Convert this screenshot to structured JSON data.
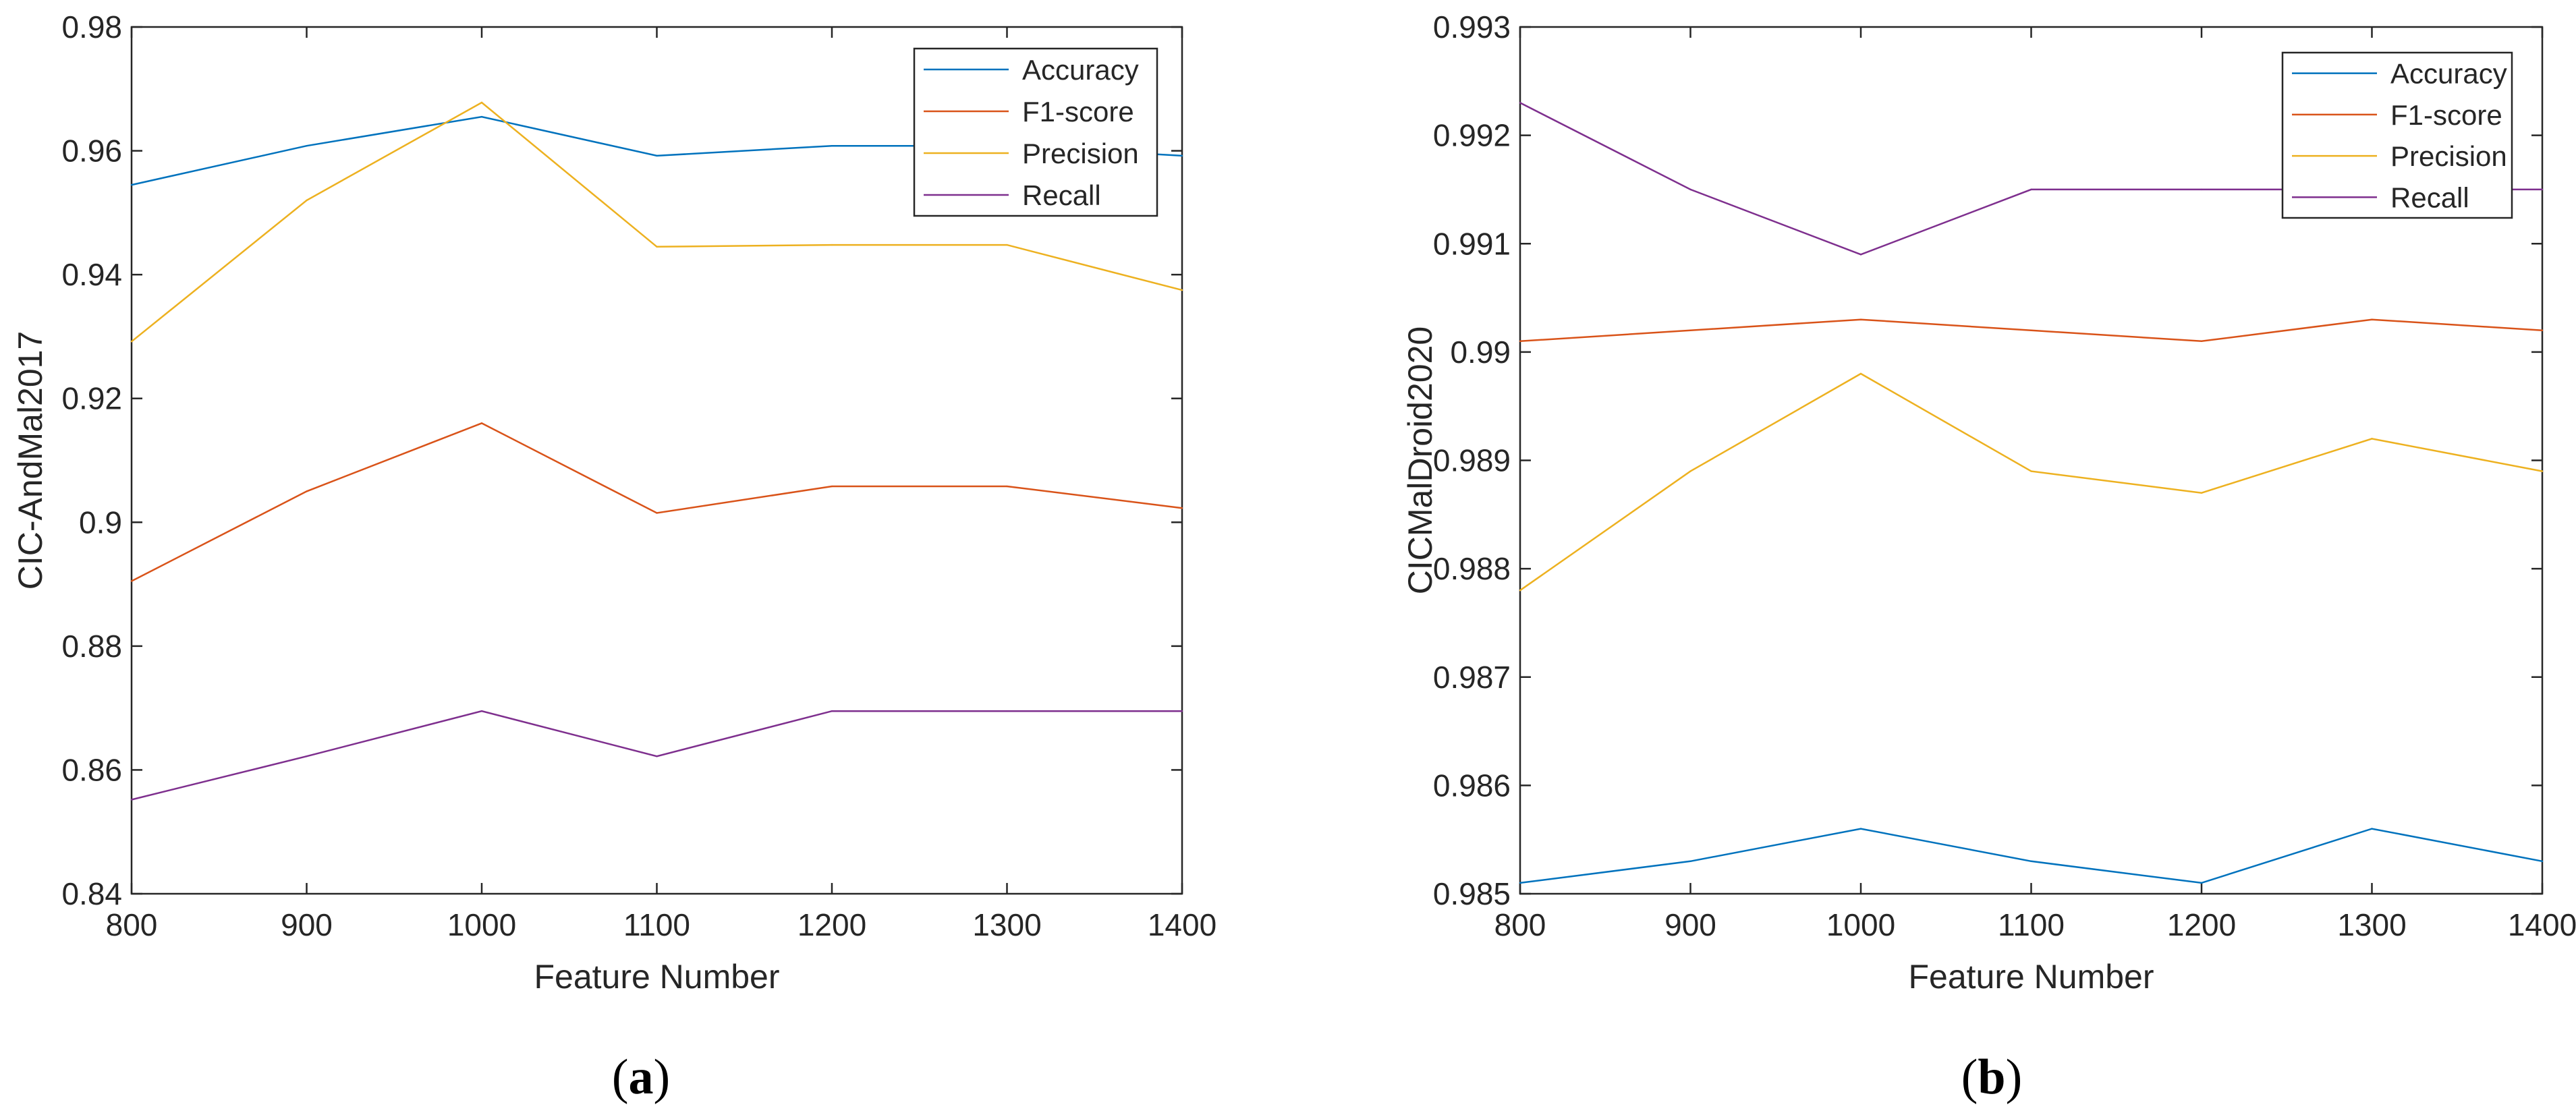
{
  "chart_data": [
    {
      "type": "line",
      "panel": "(a)",
      "xlabel": "Feature Number",
      "ylabel": "CIC-AndMal2017",
      "x": [
        800,
        900,
        1000,
        1100,
        1200,
        1300,
        1400
      ],
      "xlim": [
        800,
        1400
      ],
      "ylim": [
        0.84,
        0.98
      ],
      "xticks": [
        "800",
        "900",
        "1000",
        "1100",
        "1200",
        "1300",
        "1400"
      ],
      "yticks": [
        "0.84",
        "0.86",
        "0.88",
        "0.9",
        "0.92",
        "0.94",
        "0.96",
        "0.98"
      ],
      "legend_position": "top-right",
      "series": [
        {
          "name": "Accuracy",
          "color": "#0072BD",
          "values": [
            0.9545,
            0.9608,
            0.9655,
            0.9592,
            0.9608,
            0.9608,
            0.9592
          ]
        },
        {
          "name": "F1-score",
          "color": "#D95319",
          "values": [
            0.8905,
            0.905,
            0.916,
            0.9015,
            0.9058,
            0.9058,
            0.9023
          ]
        },
        {
          "name": "Precision",
          "color": "#EDB120",
          "values": [
            0.9292,
            0.952,
            0.9678,
            0.9445,
            0.9448,
            0.9448,
            0.9375
          ]
        },
        {
          "name": "Recall",
          "color": "#7E2F8E",
          "values": [
            0.8552,
            0.8622,
            0.8695,
            0.8622,
            0.8695,
            0.8695,
            0.8695
          ]
        }
      ]
    },
    {
      "type": "line",
      "panel": "(b)",
      "xlabel": "Feature Number",
      "ylabel": "CICMalDroid2020",
      "x": [
        800,
        900,
        1000,
        1100,
        1200,
        1300,
        1400
      ],
      "xlim": [
        800,
        1400
      ],
      "ylim": [
        0.985,
        0.993
      ],
      "xticks": [
        "800",
        "900",
        "1000",
        "1100",
        "1200",
        "1300",
        "1400"
      ],
      "yticks": [
        "0.985",
        "0.986",
        "0.987",
        "0.988",
        "0.989",
        "0.99",
        "0.991",
        "0.992",
        "0.993"
      ],
      "legend_position": "top-right",
      "series": [
        {
          "name": "Accuracy",
          "color": "#0072BD",
          "values": [
            0.9851,
            0.9853,
            0.9856,
            0.9853,
            0.9851,
            0.9856,
            0.9853
          ]
        },
        {
          "name": "F1-score",
          "color": "#D95319",
          "values": [
            0.9901,
            0.9902,
            0.9903,
            0.9902,
            0.9901,
            0.9903,
            0.9902
          ]
        },
        {
          "name": "Precision",
          "color": "#EDB120",
          "values": [
            0.9878,
            0.9889,
            0.9898,
            0.9889,
            0.9887,
            0.9892,
            0.9889
          ]
        },
        {
          "name": "Recall",
          "color": "#7E2F8E",
          "values": [
            0.9923,
            0.9915,
            0.9909,
            0.9915,
            0.9915,
            0.9915,
            0.9915
          ]
        }
      ]
    }
  ],
  "captions": {
    "a": {
      "open": "(",
      "letter": "a",
      "close": ")"
    },
    "b": {
      "open": "(",
      "letter": "b",
      "close": ")"
    }
  }
}
